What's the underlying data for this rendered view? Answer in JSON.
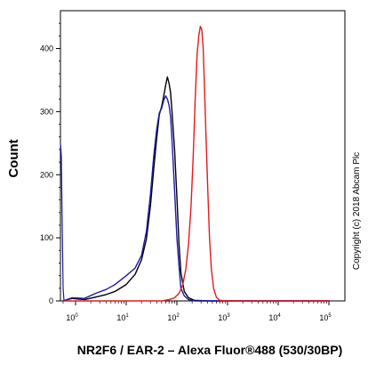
{
  "chart_data": {
    "type": "line",
    "xlabel": "NR2F6 / EAR-2 – Alexa Fluor®488 (530/30BP)",
    "ylabel": "Count",
    "annotation": "Copyright (c) 2018 Abcam Plc",
    "x_scale": "biexponential",
    "x_ticks": [
      {
        "base": "10",
        "exp": "0",
        "value": 1
      },
      {
        "base": "10",
        "exp": "1",
        "value": 10
      },
      {
        "base": "10",
        "exp": "2",
        "value": 100
      },
      {
        "base": "10",
        "exp": "3",
        "value": 1000
      },
      {
        "base": "10",
        "exp": "4",
        "value": 10000
      },
      {
        "base": "10",
        "exp": "5",
        "value": 100000
      }
    ],
    "ylim": [
      0,
      460
    ],
    "y_ticks": [
      0,
      100,
      200,
      300,
      400
    ],
    "grid": false,
    "series": [
      {
        "color": "#000000",
        "points": [
          [
            0.3,
            0
          ],
          [
            0.8,
            4
          ],
          [
            1.5,
            2
          ],
          [
            2.5,
            6
          ],
          [
            4,
            10
          ],
          [
            6,
            15
          ],
          [
            10,
            26
          ],
          [
            15,
            42
          ],
          [
            20,
            65
          ],
          [
            25,
            98
          ],
          [
            30,
            150
          ],
          [
            35,
            210
          ],
          [
            40,
            258
          ],
          [
            45,
            295
          ],
          [
            50,
            308
          ],
          [
            55,
            325
          ],
          [
            60,
            342
          ],
          [
            65,
            355
          ],
          [
            70,
            345
          ],
          [
            75,
            330
          ],
          [
            80,
            300
          ],
          [
            90,
            240
          ],
          [
            100,
            165
          ],
          [
            110,
            90
          ],
          [
            120,
            45
          ],
          [
            140,
            15
          ],
          [
            170,
            5
          ],
          [
            220,
            1
          ],
          [
            400,
            0
          ],
          [
            100000,
            0
          ]
        ]
      },
      {
        "color": "#1a1aa6",
        "points": [
          [
            0.3,
            0
          ],
          [
            0.8,
            5
          ],
          [
            1.5,
            4
          ],
          [
            2.5,
            12
          ],
          [
            4,
            18
          ],
          [
            6,
            26
          ],
          [
            10,
            40
          ],
          [
            15,
            52
          ],
          [
            20,
            72
          ],
          [
            25,
            110
          ],
          [
            30,
            168
          ],
          [
            35,
            230
          ],
          [
            40,
            272
          ],
          [
            45,
            298
          ],
          [
            50,
            305
          ],
          [
            55,
            318
          ],
          [
            60,
            325
          ],
          [
            65,
            320
          ],
          [
            70,
            310
          ],
          [
            75,
            292
          ],
          [
            80,
            255
          ],
          [
            90,
            175
          ],
          [
            100,
            100
          ],
          [
            110,
            55
          ],
          [
            120,
            20
          ],
          [
            140,
            8
          ],
          [
            170,
            2
          ],
          [
            220,
            0
          ],
          [
            100000,
            0
          ]
        ]
      },
      {
        "color": "#e31b1b",
        "points": [
          [
            0.3,
            0
          ],
          [
            50,
            0
          ],
          [
            70,
            2
          ],
          [
            90,
            5
          ],
          [
            110,
            12
          ],
          [
            130,
            25
          ],
          [
            150,
            50
          ],
          [
            170,
            90
          ],
          [
            190,
            150
          ],
          [
            210,
            230
          ],
          [
            230,
            320
          ],
          [
            250,
            390
          ],
          [
            270,
            420
          ],
          [
            290,
            435
          ],
          [
            310,
            430
          ],
          [
            330,
            400
          ],
          [
            350,
            340
          ],
          [
            380,
            250
          ],
          [
            410,
            170
          ],
          [
            440,
            100
          ],
          [
            480,
            50
          ],
          [
            530,
            20
          ],
          [
            600,
            6
          ],
          [
            700,
            1
          ],
          [
            900,
            0
          ],
          [
            100000,
            0
          ]
        ]
      }
    ]
  }
}
